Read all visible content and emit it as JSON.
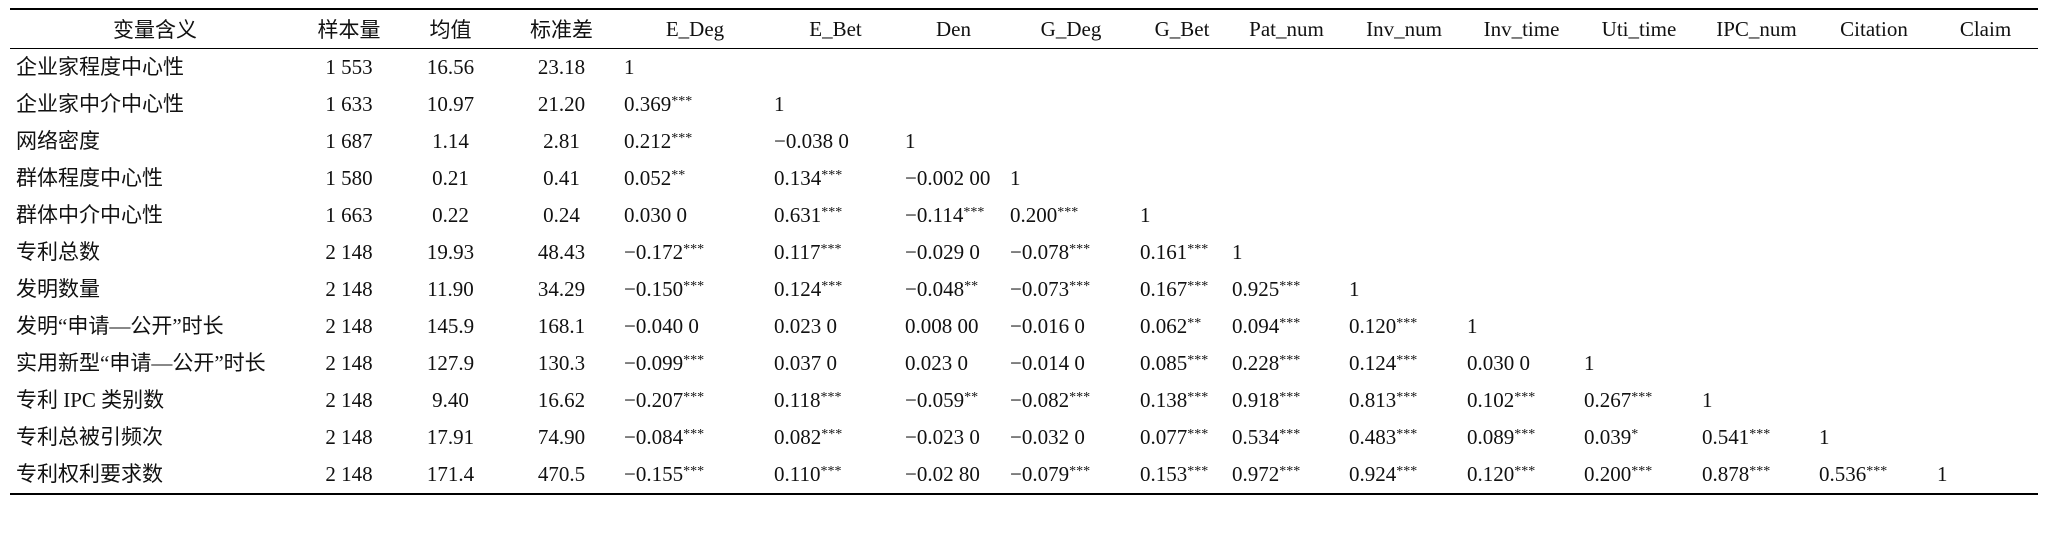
{
  "table": {
    "header": [
      "变量含义",
      "样本量",
      "均值",
      "标准差",
      "E_Deg",
      "E_Bet",
      "Den",
      "G_Deg",
      "G_Bet",
      "Pat_num",
      "Inv_num",
      "Inv_time",
      "Uti_time",
      "IPC_num",
      "Citation",
      "Claim"
    ],
    "rows": [
      [
        {
          "v": "企业家程度中心性"
        },
        {
          "v": "1 553"
        },
        {
          "v": "16.56"
        },
        {
          "v": "23.18"
        },
        {
          "v": "1"
        }
      ],
      [
        {
          "v": "企业家中介中心性"
        },
        {
          "v": "1 633"
        },
        {
          "v": "10.97"
        },
        {
          "v": "21.20"
        },
        {
          "v": "0.369",
          "sig": "***"
        },
        {
          "v": "1"
        }
      ],
      [
        {
          "v": "网络密度"
        },
        {
          "v": "1 687"
        },
        {
          "v": "1.14"
        },
        {
          "v": "2.81"
        },
        {
          "v": "0.212",
          "sig": "***"
        },
        {
          "v": "−0.038 0"
        },
        {
          "v": "1"
        }
      ],
      [
        {
          "v": "群体程度中心性"
        },
        {
          "v": "1 580"
        },
        {
          "v": "0.21"
        },
        {
          "v": "0.41"
        },
        {
          "v": "0.052",
          "sig": "**"
        },
        {
          "v": "0.134",
          "sig": "***"
        },
        {
          "v": "−0.002 00"
        },
        {
          "v": "1"
        }
      ],
      [
        {
          "v": "群体中介中心性"
        },
        {
          "v": "1 663"
        },
        {
          "v": "0.22"
        },
        {
          "v": "0.24"
        },
        {
          "v": "0.030 0"
        },
        {
          "v": "0.631",
          "sig": "***"
        },
        {
          "v": "−0.114",
          "sig": "***"
        },
        {
          "v": "0.200",
          "sig": "***"
        },
        {
          "v": "1"
        }
      ],
      [
        {
          "v": "专利总数"
        },
        {
          "v": "2 148"
        },
        {
          "v": "19.93"
        },
        {
          "v": "48.43"
        },
        {
          "v": "−0.172",
          "sig": "***"
        },
        {
          "v": "0.117",
          "sig": "***"
        },
        {
          "v": "−0.029 0"
        },
        {
          "v": "−0.078",
          "sig": "***"
        },
        {
          "v": "0.161",
          "sig": "***"
        },
        {
          "v": "1"
        }
      ],
      [
        {
          "v": "发明数量"
        },
        {
          "v": "2 148"
        },
        {
          "v": "11.90"
        },
        {
          "v": "34.29"
        },
        {
          "v": "−0.150",
          "sig": "***"
        },
        {
          "v": "0.124",
          "sig": "***"
        },
        {
          "v": "−0.048",
          "sig": "**"
        },
        {
          "v": "−0.073",
          "sig": "***"
        },
        {
          "v": "0.167",
          "sig": "***"
        },
        {
          "v": "0.925",
          "sig": "***"
        },
        {
          "v": "1"
        }
      ],
      [
        {
          "v": "发明“申请—公开”时长"
        },
        {
          "v": "2 148"
        },
        {
          "v": "145.9"
        },
        {
          "v": "168.1"
        },
        {
          "v": "−0.040 0"
        },
        {
          "v": "0.023 0"
        },
        {
          "v": "0.008 00"
        },
        {
          "v": "−0.016 0"
        },
        {
          "v": "0.062",
          "sig": "**"
        },
        {
          "v": "0.094",
          "sig": "***"
        },
        {
          "v": "0.120",
          "sig": "***"
        },
        {
          "v": "1"
        }
      ],
      [
        {
          "v": "实用新型“申请—公开”时长"
        },
        {
          "v": "2 148"
        },
        {
          "v": "127.9"
        },
        {
          "v": "130.3"
        },
        {
          "v": "−0.099",
          "sig": "***"
        },
        {
          "v": "0.037 0"
        },
        {
          "v": "0.023 0"
        },
        {
          "v": "−0.014 0"
        },
        {
          "v": "0.085",
          "sig": "***"
        },
        {
          "v": "0.228",
          "sig": "***"
        },
        {
          "v": "0.124",
          "sig": "***"
        },
        {
          "v": "0.030 0"
        },
        {
          "v": "1"
        }
      ],
      [
        {
          "v": "专利 IPC 类别数"
        },
        {
          "v": "2 148"
        },
        {
          "v": "9.40"
        },
        {
          "v": "16.62"
        },
        {
          "v": "−0.207",
          "sig": "***"
        },
        {
          "v": "0.118",
          "sig": "***"
        },
        {
          "v": "−0.059",
          "sig": "**"
        },
        {
          "v": "−0.082",
          "sig": "***"
        },
        {
          "v": "0.138",
          "sig": "***"
        },
        {
          "v": "0.918",
          "sig": "***"
        },
        {
          "v": "0.813",
          "sig": "***"
        },
        {
          "v": "0.102",
          "sig": "***"
        },
        {
          "v": "0.267",
          "sig": "***"
        },
        {
          "v": "1"
        }
      ],
      [
        {
          "v": "专利总被引频次"
        },
        {
          "v": "2 148"
        },
        {
          "v": "17.91"
        },
        {
          "v": "74.90"
        },
        {
          "v": "−0.084",
          "sig": "***"
        },
        {
          "v": "0.082",
          "sig": "***"
        },
        {
          "v": "−0.023 0"
        },
        {
          "v": "−0.032 0"
        },
        {
          "v": "0.077",
          "sig": "***"
        },
        {
          "v": "0.534",
          "sig": "***"
        },
        {
          "v": "0.483",
          "sig": "***"
        },
        {
          "v": "0.089",
          "sig": "***"
        },
        {
          "v": "0.039",
          "sig": "*"
        },
        {
          "v": "0.541",
          "sig": "***"
        },
        {
          "v": "1"
        }
      ],
      [
        {
          "v": "专利权利要求数"
        },
        {
          "v": "2 148"
        },
        {
          "v": "171.4"
        },
        {
          "v": "470.5"
        },
        {
          "v": "−0.155",
          "sig": "***"
        },
        {
          "v": "0.110",
          "sig": "***"
        },
        {
          "v": "−0.02 80"
        },
        {
          "v": "−0.079",
          "sig": "***"
        },
        {
          "v": "0.153",
          "sig": "***"
        },
        {
          "v": "0.972",
          "sig": "***"
        },
        {
          "v": "0.924",
          "sig": "***"
        },
        {
          "v": "0.120",
          "sig": "***"
        },
        {
          "v": "0.200",
          "sig": "***"
        },
        {
          "v": "0.878",
          "sig": "***"
        },
        {
          "v": "0.536",
          "sig": "***"
        },
        {
          "v": "1"
        }
      ]
    ]
  }
}
